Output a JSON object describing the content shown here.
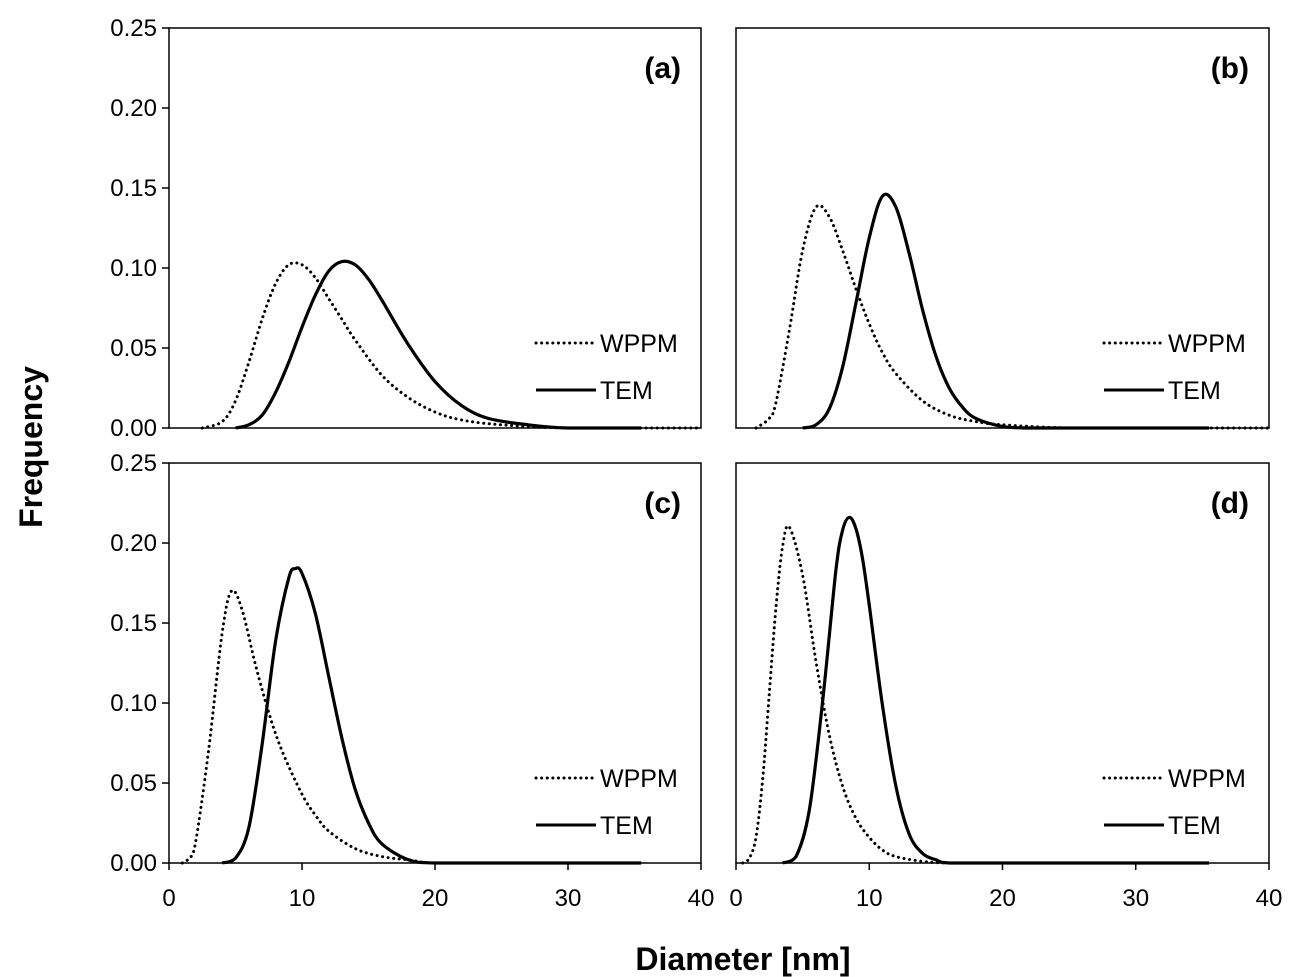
{
  "chart_data": {
    "type": "line",
    "xlabel": "Diameter [nm]",
    "ylabel": "Frequency",
    "xlim": [
      0,
      40
    ],
    "ylim": [
      0,
      0.25
    ],
    "x_ticks": [
      "0",
      "10",
      "20",
      "30",
      "40"
    ],
    "y_ticks": [
      "0.00",
      "0.05",
      "0.10",
      "0.15",
      "0.20",
      "0.25"
    ],
    "grid": false,
    "legend_position": "right",
    "series_styles": {
      "WPPM": "dotted",
      "TEM": "solid"
    },
    "colors": {
      "line": "#000000",
      "axes": "#000000",
      "background": "#ffffff"
    },
    "panels": [
      {
        "label": "(a)",
        "series": [
          {
            "name": "WPPM",
            "x": [
              2.5,
              4,
              5,
              6,
              7,
              8,
              9,
              10,
              11,
              12,
              13,
              14,
              16,
              18,
              20,
              22,
              25,
              30,
              40
            ],
            "y": [
              0.0,
              0.004,
              0.017,
              0.041,
              0.068,
              0.09,
              0.102,
              0.102,
              0.094,
              0.081,
              0.068,
              0.055,
              0.033,
              0.019,
              0.01,
              0.005,
              0.002,
              0.0,
              0.0
            ]
          },
          {
            "name": "TEM",
            "x": [
              5,
              6,
              7,
              8,
              9,
              10,
              11,
              12,
              13,
              14,
              15,
              16,
              18,
              20,
              22,
              24,
              27,
              30,
              35.5
            ],
            "y": [
              0.0,
              0.002,
              0.008,
              0.022,
              0.041,
              0.063,
              0.083,
              0.098,
              0.104,
              0.102,
              0.093,
              0.08,
              0.052,
              0.029,
              0.014,
              0.006,
              0.002,
              0.0,
              0.0
            ]
          }
        ]
      },
      {
        "label": "(b)",
        "series": [
          {
            "name": "WPPM",
            "x": [
              1.5,
              2.5,
              3,
              4,
              5,
              6,
              7,
              8,
              9,
              10,
              11,
              12,
              14,
              16,
              18,
              20,
              25,
              30,
              40
            ],
            "y": [
              0.0,
              0.006,
              0.016,
              0.061,
              0.111,
              0.138,
              0.132,
              0.111,
              0.087,
              0.065,
              0.047,
              0.034,
              0.017,
              0.008,
              0.004,
              0.002,
              0.0,
              0.0,
              0.0
            ]
          },
          {
            "name": "TEM",
            "x": [
              5,
              6,
              7,
              8,
              9,
              10,
              11,
              12,
              13,
              14,
              15,
              16,
              17,
              18,
              20,
              22,
              25,
              30,
              35.5
            ],
            "y": [
              0.0,
              0.002,
              0.012,
              0.038,
              0.078,
              0.119,
              0.145,
              0.138,
              0.109,
              0.074,
              0.045,
              0.025,
              0.013,
              0.006,
              0.001,
              0.0,
              0.0,
              0.0,
              0.0
            ]
          }
        ]
      },
      {
        "label": "(c)",
        "series": [
          {
            "name": "WPPM",
            "x": [
              1,
              1.5,
              2,
              3,
              4,
              4.7,
              5.5,
              6.5,
              7.5,
              8.5,
              10,
              11,
              12,
              14,
              16,
              18,
              20,
              25,
              35.5
            ],
            "y": [
              0.0,
              0.003,
              0.013,
              0.072,
              0.144,
              0.17,
              0.158,
              0.124,
              0.094,
              0.07,
              0.043,
              0.03,
              0.02,
              0.009,
              0.004,
              0.002,
              0.0,
              0.0,
              0.0
            ]
          },
          {
            "name": "TEM",
            "x": [
              4,
              5,
              6,
              7,
              8,
              9,
              9.5,
              10,
              11,
              12,
              13,
              14,
              15,
              16,
              18,
              20,
              25,
              30,
              35.5
            ],
            "y": [
              0.0,
              0.003,
              0.022,
              0.074,
              0.138,
              0.178,
              0.184,
              0.181,
              0.156,
              0.117,
              0.078,
              0.046,
              0.025,
              0.012,
              0.002,
              0.0,
              0.0,
              0.0,
              0.0
            ]
          }
        ]
      },
      {
        "label": "(d)",
        "series": [
          {
            "name": "WPPM",
            "x": [
              0.5,
              1,
              1.5,
              2,
              2.5,
              3,
              3.5,
              4,
              5,
              6,
              7,
              8,
              9,
              10,
              11,
              12,
              14,
              16,
              20
            ],
            "y": [
              0.0,
              0.003,
              0.016,
              0.052,
              0.106,
              0.16,
              0.198,
              0.21,
              0.18,
              0.126,
              0.08,
              0.048,
              0.028,
              0.016,
              0.008,
              0.004,
              0.001,
              0.0,
              0.0
            ]
          },
          {
            "name": "TEM",
            "x": [
              3.5,
              4.5,
              5.5,
              6.5,
              7.5,
              8,
              8.5,
              9,
              9.5,
              10,
              11,
              12,
              13,
              14,
              15,
              16,
              20,
              25,
              35.5
            ],
            "y": [
              0.0,
              0.004,
              0.033,
              0.101,
              0.183,
              0.208,
              0.216,
              0.209,
              0.19,
              0.161,
              0.098,
              0.048,
              0.018,
              0.006,
              0.002,
              0.0,
              0.0,
              0.0,
              0.0
            ]
          }
        ]
      }
    ]
  }
}
